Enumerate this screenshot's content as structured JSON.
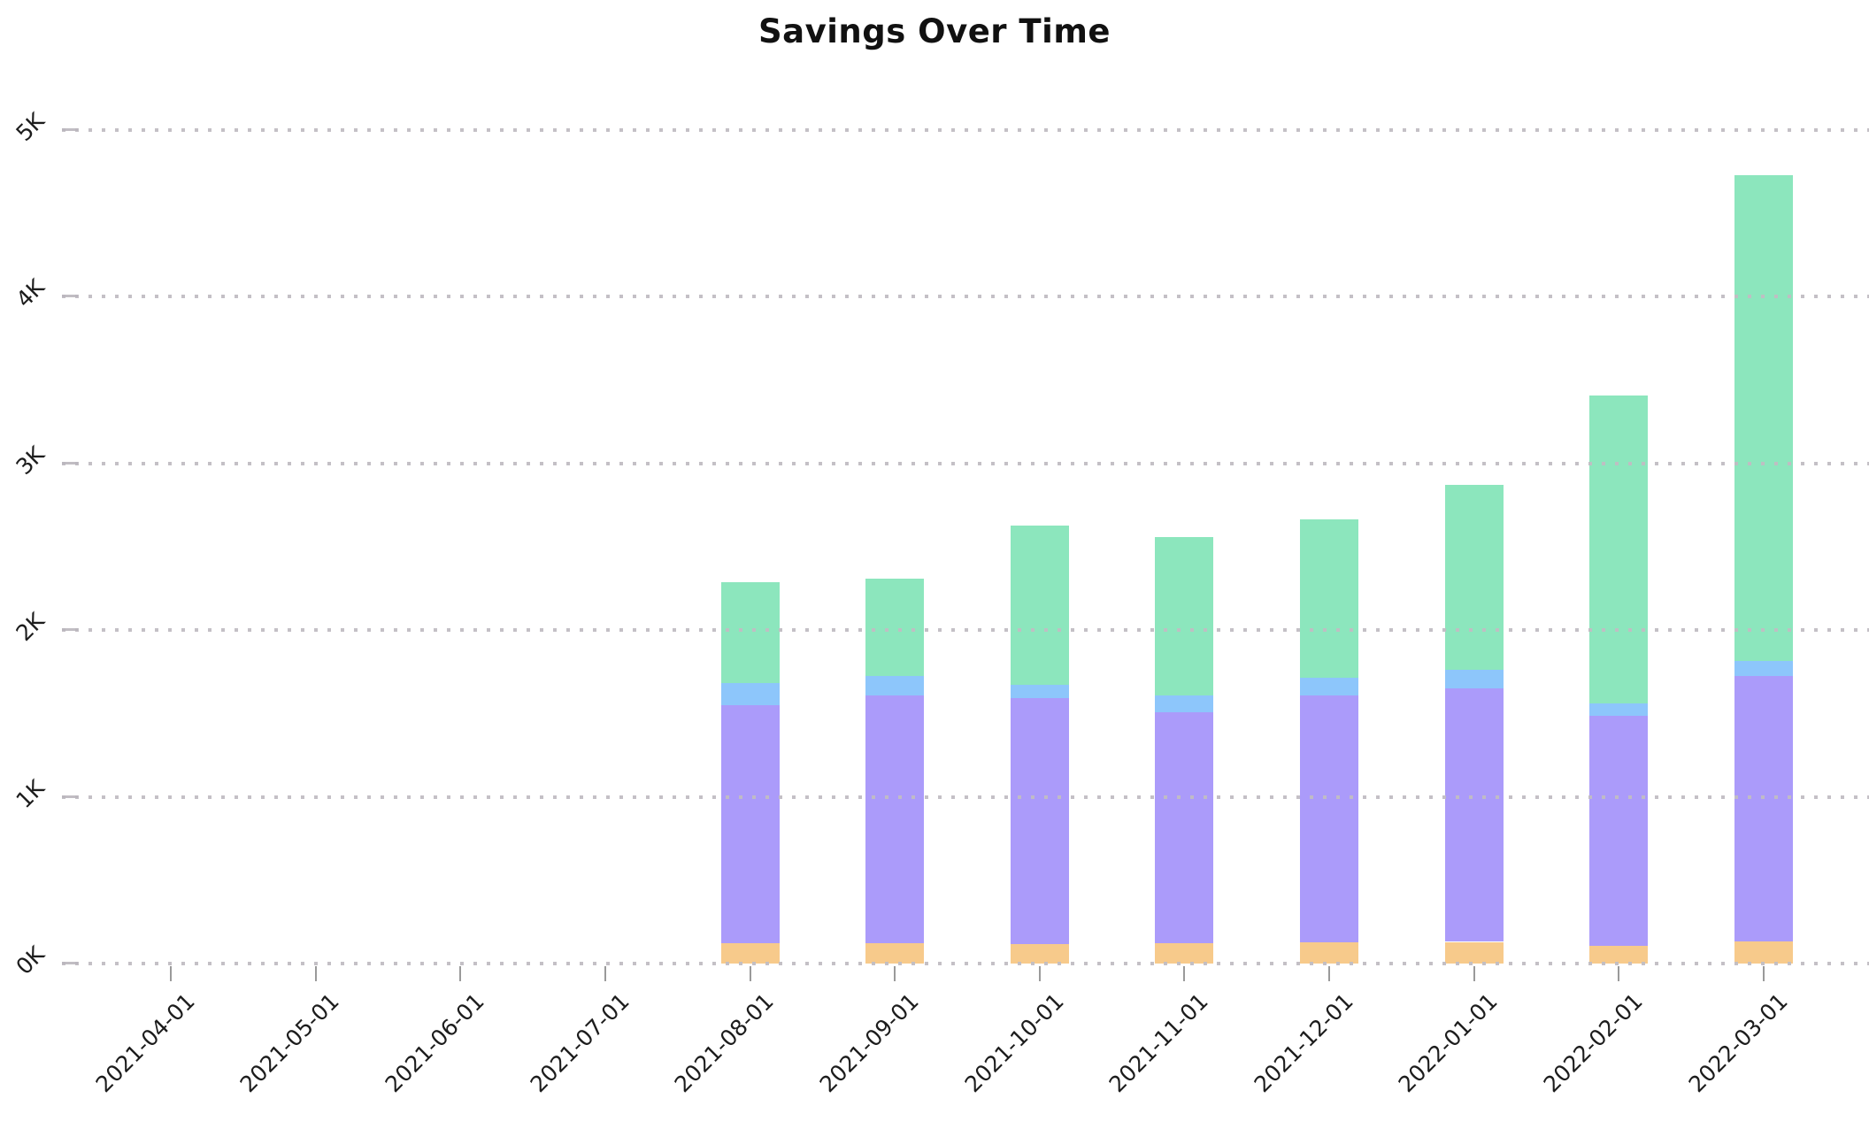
{
  "chart_data": {
    "type": "bar",
    "stacked": true,
    "title": "Savings Over Time",
    "xlabel": "",
    "ylabel": "",
    "legend": "none",
    "grid": "horizontal-dotted",
    "ylim": [
      0,
      5250
    ],
    "yticks": [
      {
        "label": "0K",
        "value": 0
      },
      {
        "label": "1K",
        "value": 1000
      },
      {
        "label": "2K",
        "value": 2000
      },
      {
        "label": "3K",
        "value": 3000
      },
      {
        "label": "4K",
        "value": 4000
      },
      {
        "label": "5K",
        "value": 5000
      }
    ],
    "categories": [
      "2021-04-01",
      "2021-05-01",
      "2021-06-01",
      "2021-07-01",
      "2021-08-01",
      "2021-09-01",
      "2021-10-01",
      "2021-11-01",
      "2021-12-01",
      "2022-01-01",
      "2022-02-01",
      "2022-03-01"
    ],
    "series": [
      {
        "name": "orange-segment",
        "color": "#f7ca8b",
        "values": [
          0,
          0,
          0,
          0,
          120,
          120,
          115,
          120,
          130,
          130,
          105,
          135
        ]
      },
      {
        "name": "purple-segment",
        "color": "#ab9bfa",
        "values": [
          0,
          0,
          0,
          0,
          1430,
          1490,
          1475,
          1385,
          1480,
          1520,
          1380,
          1590
        ]
      },
      {
        "name": "blue-segment",
        "color": "#8dc6fb",
        "values": [
          0,
          0,
          0,
          0,
          130,
          115,
          80,
          105,
          105,
          110,
          75,
          90
        ]
      },
      {
        "name": "green-segment",
        "color": "#8ce6bd",
        "values": [
          0,
          0,
          0,
          0,
          610,
          585,
          960,
          950,
          950,
          1110,
          1850,
          2915
        ]
      }
    ],
    "totals": [
      0,
      0,
      0,
      0,
      2290,
      2310,
      2630,
      2560,
      2665,
      2870,
      3410,
      4730
    ]
  }
}
